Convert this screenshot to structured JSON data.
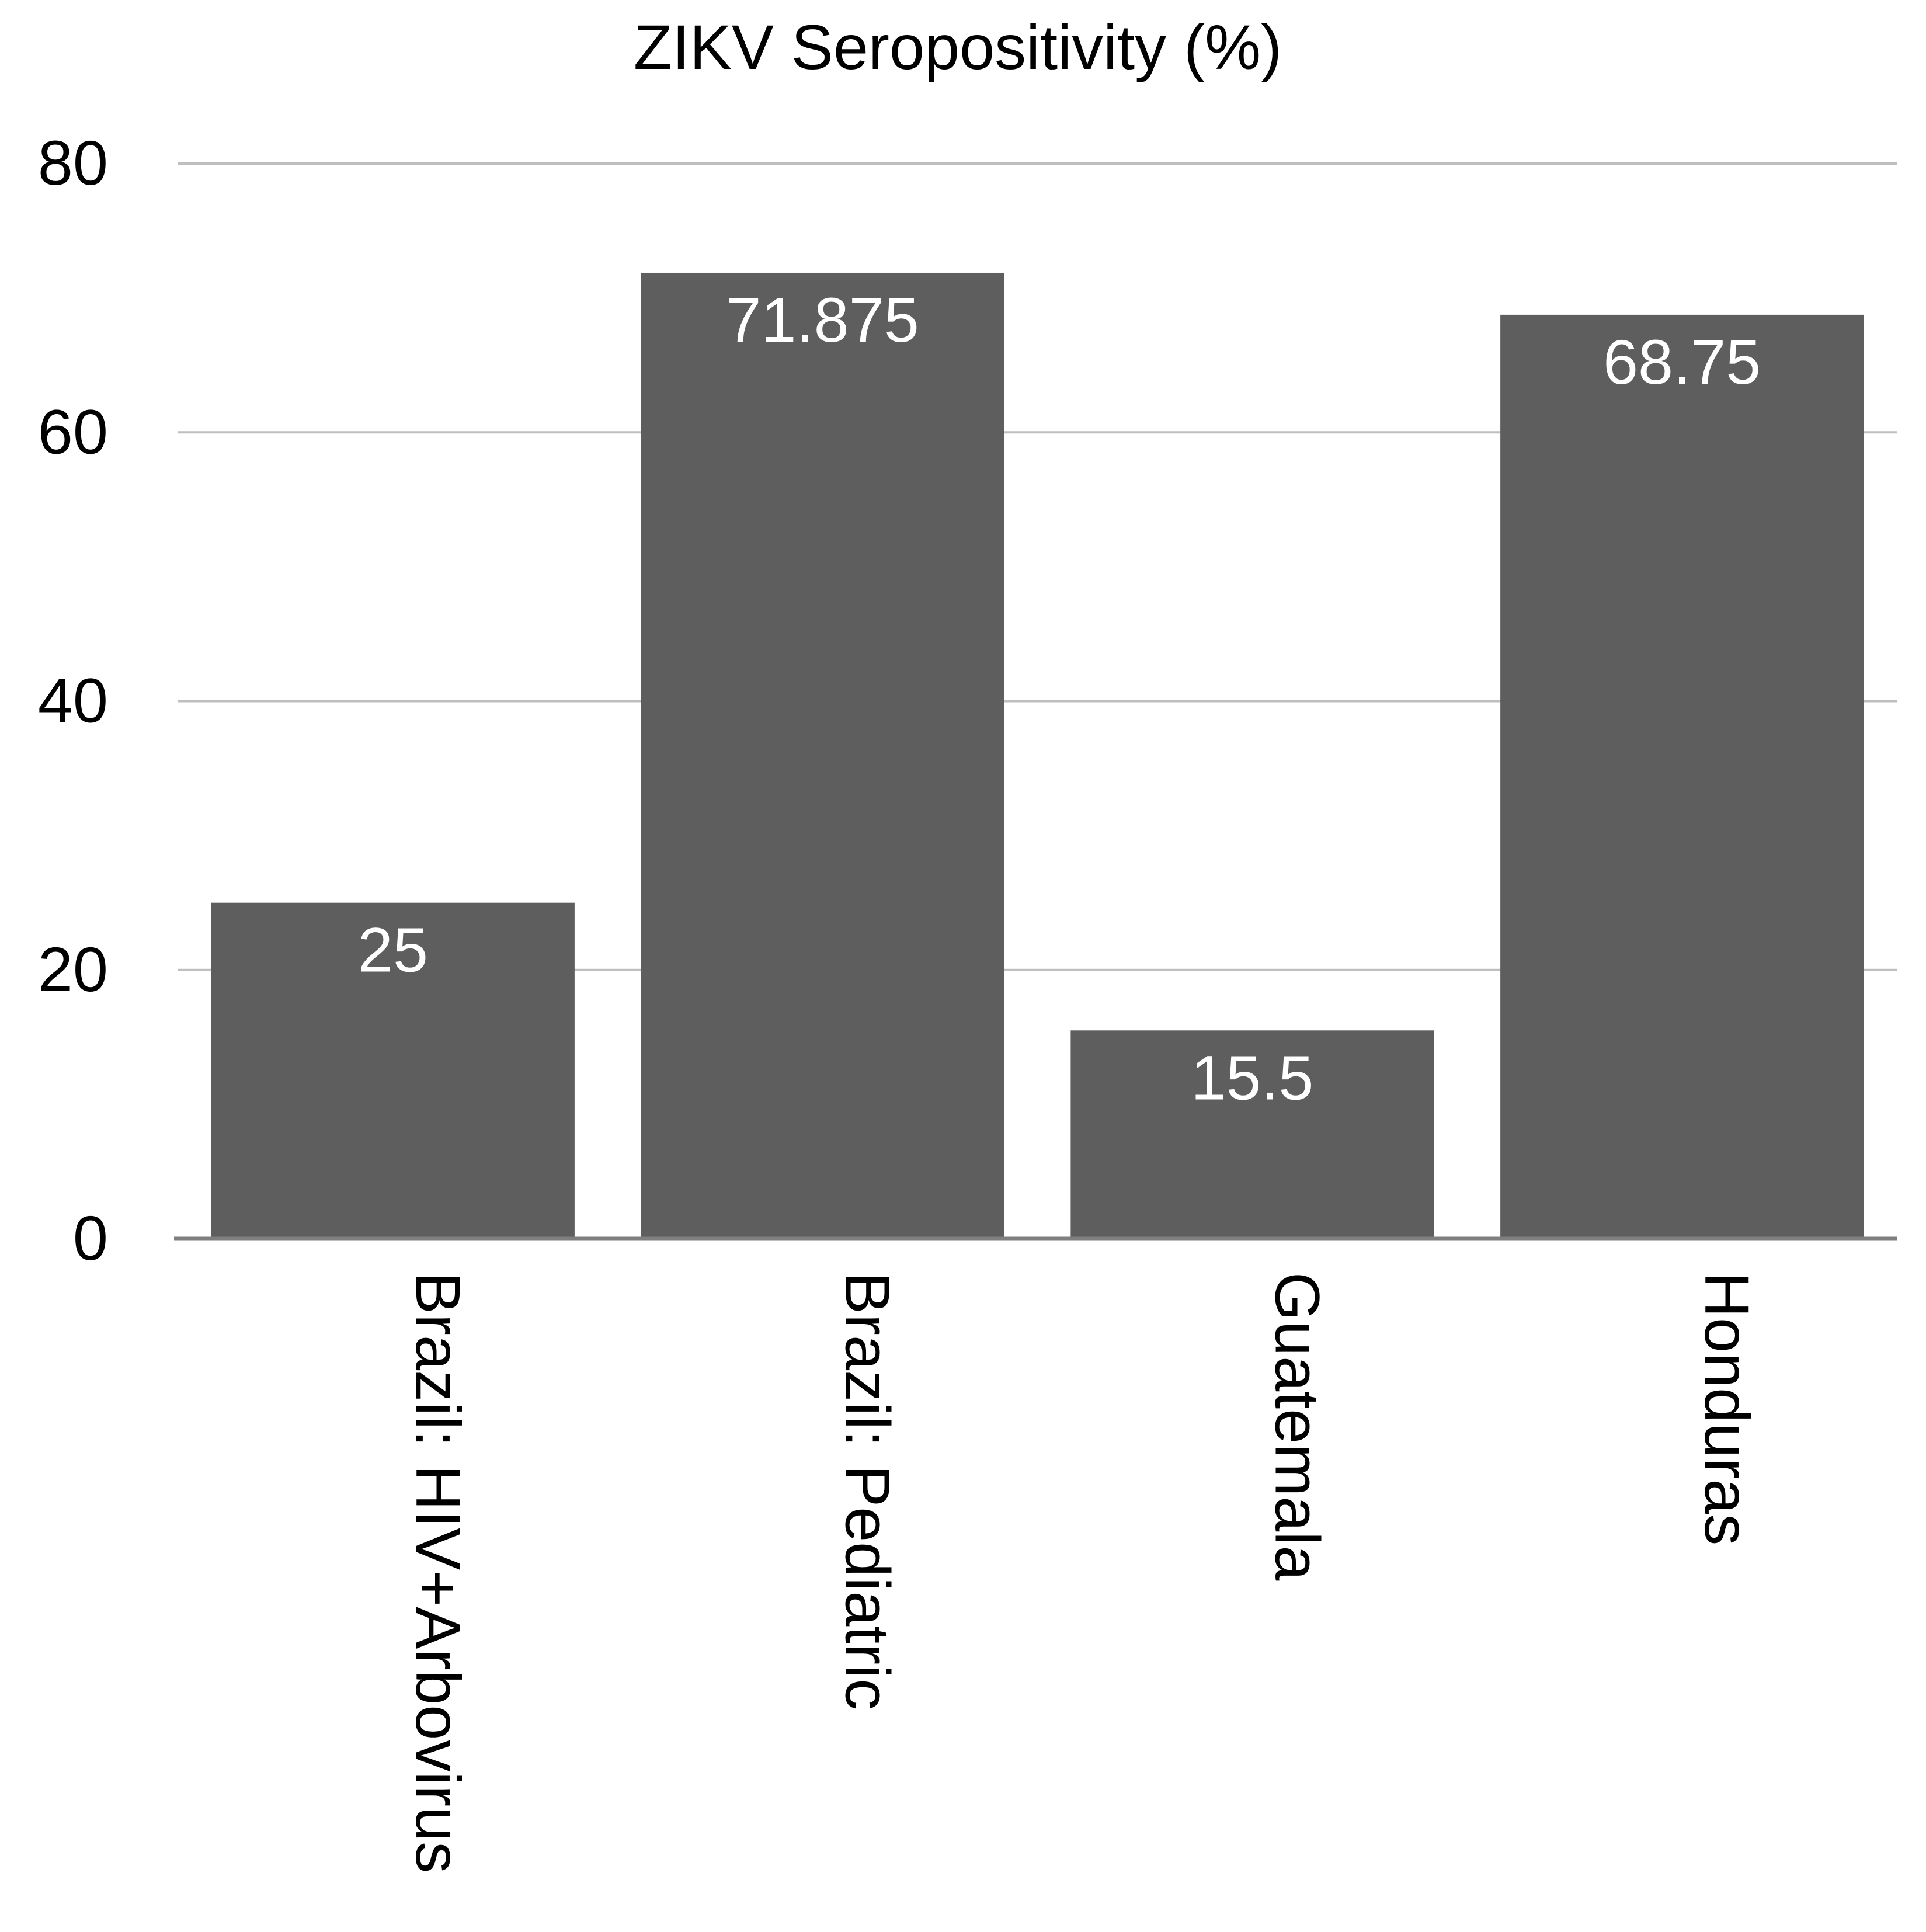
{
  "chart_data": {
    "type": "bar",
    "title": "ZIKV Seropositivity (%)",
    "xlabel": "",
    "ylabel": "",
    "categories": [
      "Brazil: HIV+Arbovirus",
      "Brazil: Pediatric",
      "Guatemala",
      "Honduras"
    ],
    "values": [
      25,
      71.875,
      15.5,
      68.75
    ],
    "data_labels": [
      "25",
      "71.875",
      "15.5",
      "68.75"
    ],
    "ylim": [
      0,
      80
    ],
    "yticks": [
      0,
      20,
      40,
      60,
      80
    ],
    "ytick_labels": [
      "0",
      "20",
      "40",
      "60",
      "80"
    ],
    "grid": true,
    "legend": "none",
    "colors": {
      "bar": "#5e5e5e",
      "grid": "#bfbfbf",
      "axis": "#7f7f7f",
      "text": "#000000",
      "data_label": "#ffffff"
    }
  }
}
